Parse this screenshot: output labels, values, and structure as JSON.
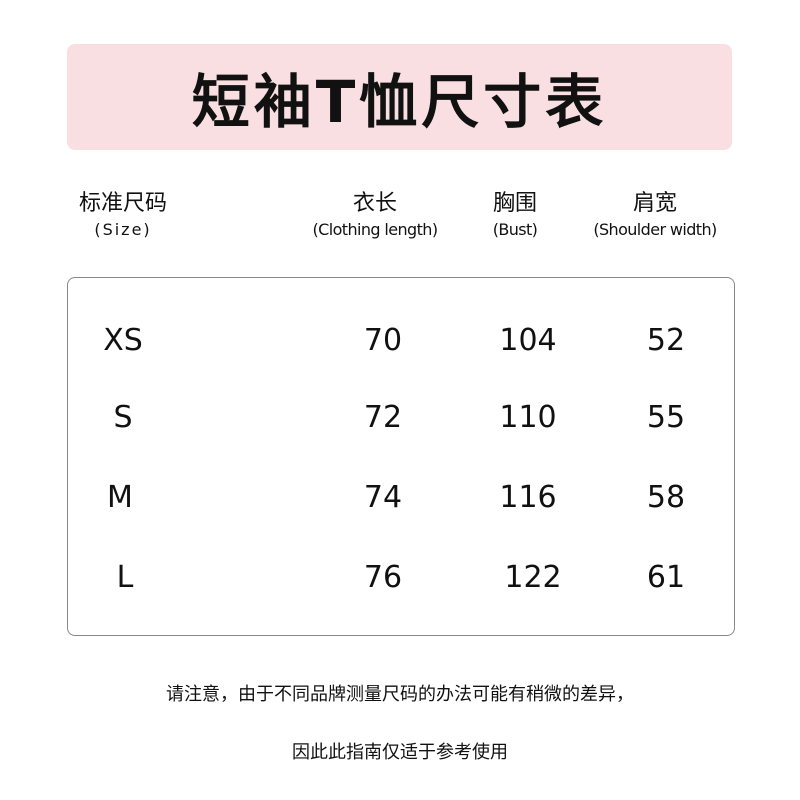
{
  "colors": {
    "banner": "#f9dfe1"
  },
  "title": "短袖T恤尺寸表",
  "headers": [
    {
      "zh": "标准尺码",
      "en": "(Size)"
    },
    {
      "zh": "衣长",
      "en": "(Clothing length)"
    },
    {
      "zh": "胸围",
      "en": "(Bust)"
    },
    {
      "zh": "肩宽",
      "en": "(Shoulder width)"
    }
  ],
  "rows": [
    {
      "size": "XS",
      "length": "70",
      "bust": "104",
      "shoulder": "52"
    },
    {
      "size": "S",
      "length": "72",
      "bust": "110",
      "shoulder": "55"
    },
    {
      "size": "M",
      "length": "74",
      "bust": "116",
      "shoulder": "58"
    },
    {
      "size": "L",
      "length": "76",
      "bust": "122",
      "shoulder": "61"
    }
  ],
  "notes": [
    "请注意，由于不同品牌测量尺码的办法可能有稍微的差异，",
    "因此此指南仅适于参考使用"
  ]
}
